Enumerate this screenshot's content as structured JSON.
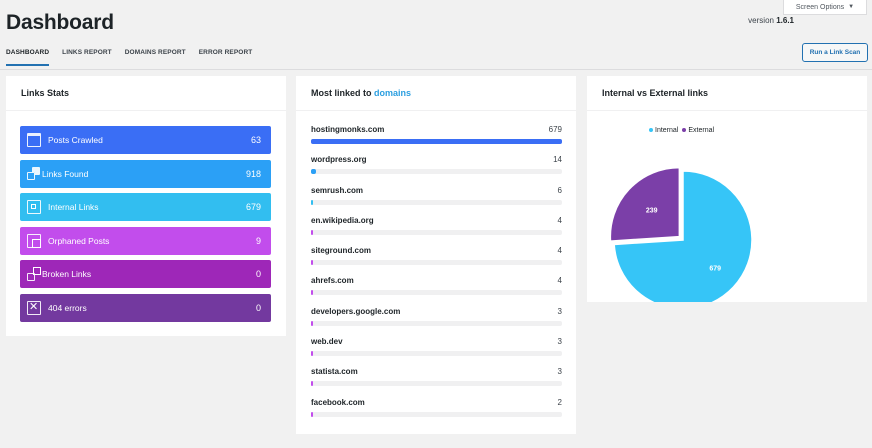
{
  "header": {
    "title": "Dashboard",
    "version_prefix": "version",
    "version": "1.6.1",
    "screen_options": "Screen Options"
  },
  "tabs": [
    {
      "label": "DASHBOARD",
      "active": true
    },
    {
      "label": "LINKS REPORT",
      "active": false
    },
    {
      "label": "DOMAINS REPORT",
      "active": false
    },
    {
      "label": "ERROR REPORT",
      "active": false
    }
  ],
  "scan_button": "Run a Link Scan",
  "links_stats": {
    "title": "Links Stats",
    "items": [
      {
        "label": "Posts Crawled",
        "value": "63",
        "color": "#3a6ef5",
        "icon": "browser-window-icon"
      },
      {
        "label": "Links Found",
        "value": "918",
        "color": "#2ba0f6",
        "icon": "link-squares-icon"
      },
      {
        "label": "Internal Links",
        "value": "679",
        "color": "#32bef0",
        "icon": "internal-square-icon"
      },
      {
        "label": "Orphaned Posts",
        "value": "9",
        "color": "#c24dec",
        "icon": "stacked-pages-icon"
      },
      {
        "label": "Broken Links",
        "value": "0",
        "color": "#9e27b8",
        "icon": "broken-link-icon"
      },
      {
        "label": "404 errors",
        "value": "0",
        "color": "#73399f",
        "icon": "error-x-icon"
      }
    ]
  },
  "domains": {
    "title_prefix": "Most linked to",
    "title_link": "domains",
    "max": 679,
    "items": [
      {
        "name": "hostingmonks.com",
        "count": 679,
        "color": "#3a6ef5"
      },
      {
        "name": "wordpress.org",
        "count": 14,
        "color": "#2ba0f6"
      },
      {
        "name": "semrush.com",
        "count": 6,
        "color": "#32bef0"
      },
      {
        "name": "en.wikipedia.org",
        "count": 4,
        "color": "#c24dec"
      },
      {
        "name": "siteground.com",
        "count": 4,
        "color": "#c24dec"
      },
      {
        "name": "ahrefs.com",
        "count": 4,
        "color": "#c24dec"
      },
      {
        "name": "developers.google.com",
        "count": 3,
        "color": "#c24dec"
      },
      {
        "name": "web.dev",
        "count": 3,
        "color": "#c24dec"
      },
      {
        "name": "statista.com",
        "count": 3,
        "color": "#c24dec"
      },
      {
        "name": "facebook.com",
        "count": 2,
        "color": "#c24dec"
      }
    ]
  },
  "pie": {
    "title": "Internal vs External links",
    "chart_data": {
      "type": "pie",
      "categories": [
        "Internal",
        "External"
      ],
      "values": [
        679,
        239
      ],
      "colors": [
        "#36c5f7",
        "#7b3fa8"
      ],
      "legend": "top"
    }
  }
}
